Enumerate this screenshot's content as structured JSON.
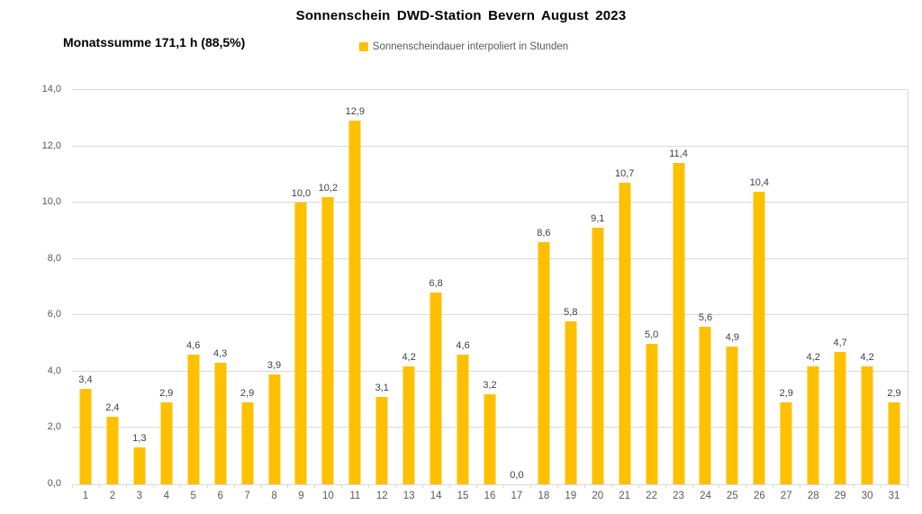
{
  "header": {
    "title": "Sonnenschein DWD-Station Bevern August 2023",
    "subtitle": "Monatssumme 171,1 h (88,5%)"
  },
  "legend": {
    "label": "Sonnenscheindauer interpoliert in Stunden",
    "marker_color": "#FFC000"
  },
  "colors": {
    "bar": "#FFC000",
    "grid": "#D9D9D9",
    "axis_text": "#595959",
    "data_label": "#404040",
    "title_text": "#000000"
  },
  "chart_data": {
    "type": "bar",
    "title": "Sonnenschein DWD-Station Bevern August 2023",
    "subtitle": "Monatssumme 171,1 h (88,5%)",
    "legend_entries": [
      "Sonnenscheindauer interpoliert in Stunden"
    ],
    "legend_position": "top-center",
    "xlabel": "",
    "ylabel": "",
    "categories": [
      1,
      2,
      3,
      4,
      5,
      6,
      7,
      8,
      9,
      10,
      11,
      12,
      13,
      14,
      15,
      16,
      17,
      18,
      19,
      20,
      21,
      22,
      23,
      24,
      25,
      26,
      27,
      28,
      29,
      30,
      31
    ],
    "values": [
      3.4,
      2.4,
      1.3,
      2.9,
      4.6,
      4.3,
      2.9,
      3.9,
      10.0,
      10.2,
      12.9,
      3.1,
      4.2,
      6.8,
      4.6,
      3.2,
      0.0,
      8.6,
      5.8,
      9.1,
      10.7,
      5.0,
      11.4,
      5.6,
      4.9,
      10.4,
      2.9,
      4.2,
      4.7,
      4.2,
      2.9
    ],
    "labels": [
      "3,4",
      "2,4",
      "1,3",
      "2,9",
      "4,6",
      "4,3",
      "2,9",
      "3,9",
      "10,0",
      "10,2",
      "12,9",
      "3,1",
      "4,2",
      "6,8",
      "4,6",
      "3,2",
      "0,0",
      "8,6",
      "5,8",
      "9,1",
      "10,7",
      "5,0",
      "11,4",
      "5,6",
      "4,9",
      "10,4",
      "2,9",
      "4,2",
      "4,7",
      "4,2",
      "2,9"
    ],
    "ylim": [
      0,
      14
    ],
    "ytick_step": 2,
    "ytick_labels": [
      "0,0",
      "2,0",
      "4,0",
      "6,0",
      "8,0",
      "10,0",
      "12,0",
      "14,0"
    ],
    "grid": true,
    "bar_color": "#FFC000"
  }
}
